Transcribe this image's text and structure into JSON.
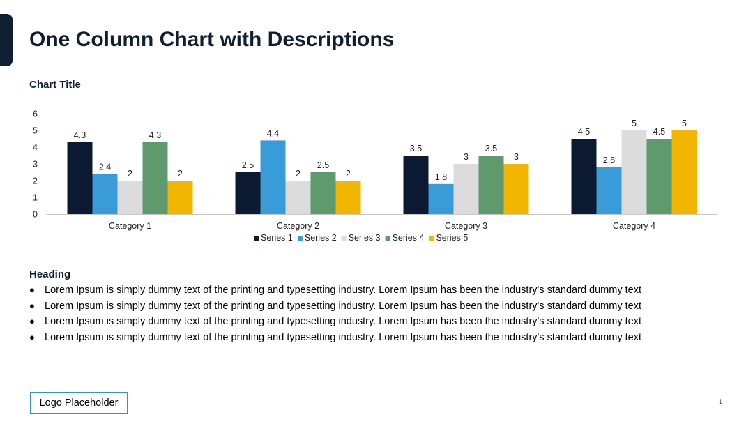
{
  "slide": {
    "title": "One Column Chart with Descriptions",
    "page_number": "1"
  },
  "colors": {
    "accent": "#0f1f33",
    "series": [
      "#0b1a30",
      "#3a9bd9",
      "#dcdcdc",
      "#5e9a6e",
      "#f2b500"
    ]
  },
  "chart_data": {
    "type": "bar",
    "title": "Chart Title",
    "categories": [
      "Category 1",
      "Category 2",
      "Category 3",
      "Category 4"
    ],
    "series": [
      {
        "name": "Series 1",
        "values": [
          4.3,
          2.5,
          3.5,
          4.5
        ]
      },
      {
        "name": "Series 2",
        "values": [
          2.4,
          4.4,
          1.8,
          2.8
        ]
      },
      {
        "name": "Series 3",
        "values": [
          2,
          2,
          3,
          5
        ]
      },
      {
        "name": "Series 4",
        "values": [
          4.3,
          2.5,
          3.5,
          4.5
        ]
      },
      {
        "name": "Series 5",
        "values": [
          2,
          2,
          3,
          5
        ]
      }
    ],
    "ylim": [
      0,
      6
    ],
    "yticks": [
      0,
      1,
      2,
      3,
      4,
      5,
      6
    ],
    "xlabel": "",
    "ylabel": "",
    "grid": false,
    "legend": "bottom",
    "data_labels": true
  },
  "description": {
    "heading": "Heading",
    "bullets": [
      "Lorem Ipsum is simply dummy text of the printing and typesetting industry. Lorem Ipsum has been the industry's standard dummy text",
      "Lorem Ipsum is simply dummy text of the printing and typesetting industry. Lorem Ipsum has been the industry's standard dummy text",
      "Lorem Ipsum is simply dummy text of the printing and typesetting industry. Lorem Ipsum has been the industry's standard dummy text",
      "Lorem Ipsum is simply dummy text of the printing and typesetting industry. Lorem Ipsum has been the industry's standard dummy text"
    ]
  },
  "logo": {
    "label": "Logo Placeholder"
  }
}
